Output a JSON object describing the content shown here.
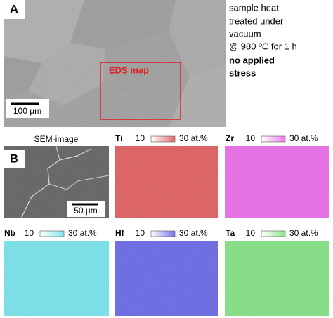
{
  "panel_a": {
    "label": "A",
    "map_label": "EDS map",
    "scale_bar": "100 µm",
    "caption": [
      "sample heat",
      "treated under",
      "vacuum",
      "@ 980 ºC for 1 h",
      "no applied",
      "stress"
    ]
  },
  "panel_b": {
    "label": "B",
    "sem": {
      "title": "SEM-image",
      "scale_bar": "50 µm"
    },
    "maps": [
      {
        "element": "Ti",
        "min": 10,
        "max": "30 at.%",
        "color": "#e46a6c"
      },
      {
        "element": "Zr",
        "min": 10,
        "max": "30 at.%",
        "color": "#ee78ee"
      },
      {
        "element": "Nb",
        "min": 10,
        "max": "30 at.%",
        "color": "#82e8f0"
      },
      {
        "element": "Hf",
        "min": 10,
        "max": "30 at.%",
        "color": "#7474ea"
      },
      {
        "element": "Ta",
        "min": 10,
        "max": "30 at.%",
        "color": "#8ee68e"
      }
    ]
  }
}
